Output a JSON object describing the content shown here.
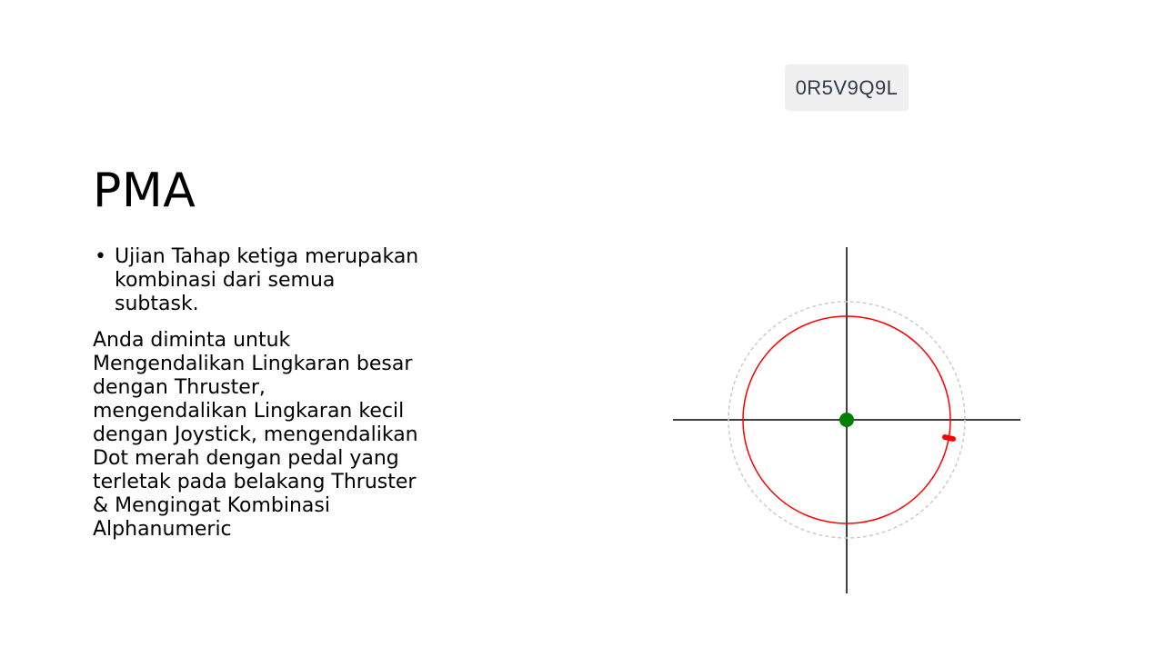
{
  "slide": {
    "title": "PMA",
    "bullets": [
      "Ujian Tahap ketiga merupakan kombinasi dari semua subtask."
    ],
    "paragraph": "Anda diminta untuk Mengendalikan Lingkaran besar dengan Thruster, mengendalikan Lingkaran kecil dengan Joystick, mengendalikan Dot merah dengan pedal yang terletak pada belakang Thruster & Mengingat Kombinasi Alphanumeric"
  },
  "code_display": {
    "value": "0R5V9Q9L"
  },
  "tracker": {
    "axis_color": "#000000",
    "outer_circle_color": "#cccccc",
    "big_circle_color": "#ff0000",
    "center_dot_color": "#008000",
    "red_dot_color": "#ff0000"
  }
}
